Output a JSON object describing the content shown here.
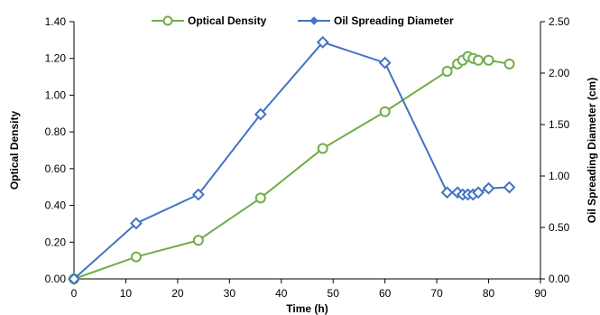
{
  "chart_data": {
    "type": "line",
    "title": "",
    "xlabel": "Time (h)",
    "ylabel_left": "Optical Density",
    "ylabel_right": "Oil Spreading Diameter (cm)",
    "xlim": [
      0,
      90
    ],
    "ylim_left": [
      0,
      1.4
    ],
    "ylim_right": [
      0,
      2.5
    ],
    "x_ticks": [
      "0",
      "10",
      "20",
      "30",
      "40",
      "50",
      "60",
      "70",
      "80",
      "90"
    ],
    "y_left_ticks": [
      "0.00",
      "0.20",
      "0.40",
      "0.60",
      "0.80",
      "1.00",
      "1.20",
      "1.40"
    ],
    "y_right_ticks": [
      "0.00",
      "0.50",
      "1.00",
      "1.50",
      "2.00",
      "2.50"
    ],
    "grid": false,
    "legend_position": "top-center",
    "series": [
      {
        "name": "Optical Density",
        "axis": "left",
        "color": "#70ad47",
        "marker": "circle",
        "x": [
          0,
          12,
          24,
          36,
          48,
          60,
          72,
          74,
          75,
          76,
          77,
          78,
          80,
          84
        ],
        "y": [
          0.0,
          0.12,
          0.21,
          0.44,
          0.71,
          0.91,
          1.13,
          1.17,
          1.19,
          1.21,
          1.2,
          1.19,
          1.19,
          1.17
        ]
      },
      {
        "name": "Oil Spreading Diameter",
        "axis": "right",
        "color": "#4472c4",
        "marker": "diamond",
        "x": [
          0,
          12,
          24,
          36,
          48,
          60,
          72,
          74,
          75,
          76,
          77,
          78,
          80,
          84
        ],
        "y": [
          0.0,
          0.54,
          0.82,
          1.6,
          2.3,
          2.1,
          0.84,
          0.84,
          0.82,
          0.82,
          0.82,
          0.84,
          0.88,
          0.89
        ]
      }
    ]
  }
}
